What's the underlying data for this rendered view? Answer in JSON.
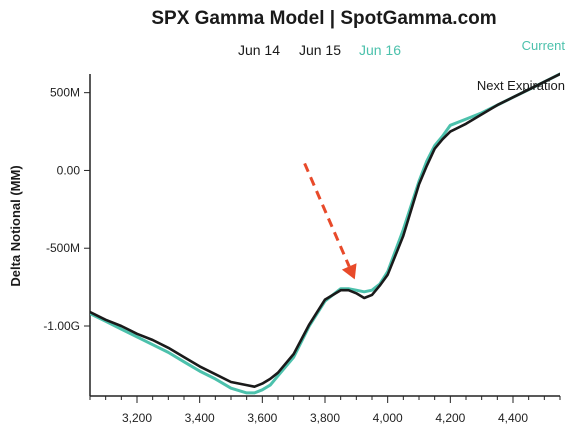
{
  "tabs": [
    {
      "label": "Jun 14",
      "active": false
    },
    {
      "label": "Jun 15",
      "active": false
    },
    {
      "label": "Jun 16",
      "active": true
    }
  ],
  "chart_data": {
    "type": "line",
    "title": "SPX Gamma Model | SpotGamma.com",
    "ylabel": "Delta Notional (MM)",
    "xlabel": "",
    "xlim": [
      3050,
      4550
    ],
    "ylim": [
      -1450,
      620
    ],
    "x_ticks": [
      3200,
      3400,
      3600,
      3800,
      4000,
      4200,
      4400
    ],
    "x_tick_labels": [
      "3,200",
      "3,400",
      "3,600",
      "3,800",
      "4,000",
      "4,200",
      "4,400"
    ],
    "y_ticks": [
      500,
      0,
      -500,
      -1000
    ],
    "y_tick_labels": [
      "500M",
      "0.00",
      "-500M",
      "-1.00G"
    ],
    "grid": false,
    "legend_position": "top-right",
    "series": [
      {
        "name": "Current",
        "color": "#4cc1ac",
        "x": [
          3050,
          3100,
          3150,
          3200,
          3250,
          3300,
          3350,
          3400,
          3450,
          3500,
          3550,
          3575,
          3600,
          3625,
          3650,
          3700,
          3750,
          3800,
          3850,
          3875,
          3900,
          3925,
          3950,
          3975,
          4000,
          4050,
          4100,
          4125,
          4150,
          4175,
          4200,
          4250,
          4300,
          4350,
          4400,
          4450,
          4500,
          4550
        ],
        "y": [
          -920,
          -970,
          -1020,
          -1070,
          -1120,
          -1170,
          -1230,
          -1290,
          -1340,
          -1400,
          -1430,
          -1430,
          -1410,
          -1380,
          -1320,
          -1200,
          -1000,
          -840,
          -760,
          -760,
          -770,
          -780,
          -770,
          -730,
          -650,
          -380,
          -70,
          60,
          160,
          220,
          290,
          330,
          370,
          420,
          470,
          520,
          570,
          620
        ]
      },
      {
        "name": "Next Expiration",
        "color": "#1a1a1a",
        "x": [
          3050,
          3100,
          3150,
          3200,
          3250,
          3300,
          3350,
          3400,
          3450,
          3500,
          3550,
          3575,
          3600,
          3625,
          3650,
          3700,
          3750,
          3800,
          3850,
          3875,
          3900,
          3925,
          3950,
          3975,
          4000,
          4050,
          4100,
          4125,
          4150,
          4175,
          4200,
          4250,
          4300,
          4350,
          4400,
          4450,
          4500,
          4550
        ],
        "y": [
          -910,
          -960,
          -1000,
          -1050,
          -1090,
          -1140,
          -1200,
          -1260,
          -1310,
          -1360,
          -1380,
          -1390,
          -1370,
          -1340,
          -1300,
          -1180,
          -990,
          -830,
          -770,
          -770,
          -790,
          -820,
          -800,
          -740,
          -670,
          -420,
          -90,
          30,
          140,
          200,
          250,
          300,
          360,
          420,
          470,
          520,
          570,
          620
        ]
      }
    ],
    "annotations": [
      {
        "type": "arrow",
        "style": "dashed",
        "color": "#e84a2a",
        "from": {
          "x": 3735,
          "y": 45
        },
        "to": {
          "x": 3895,
          "y": -700
        }
      }
    ]
  }
}
